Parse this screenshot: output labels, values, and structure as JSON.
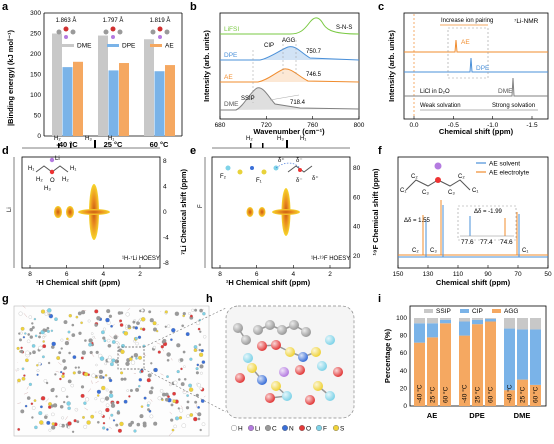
{
  "panels": {
    "a": {
      "letter": "a",
      "ylabel": "|Binding energy| (kJ mol⁻¹)",
      "yticks": [
        "0",
        "50",
        "100",
        "150",
        "200",
        "250",
        "300"
      ],
      "distances": [
        "1.863 Å",
        "1.797 Å",
        "1.819 Å"
      ],
      "legend": [
        "DME",
        "DPE",
        "AE"
      ]
    },
    "b": {
      "letter": "b",
      "xlabel": "Wavenumber (cm⁻¹)",
      "ylabel": "Intensity (arb. units)",
      "xticks": [
        "680",
        "720",
        "760",
        "800"
      ],
      "curves": [
        "LiFSI",
        "DPE",
        "AE",
        "DME"
      ],
      "annotations": [
        "S-N-S",
        "AGG",
        "CIP",
        "750.7",
        "746.5",
        "SSIP",
        "718.4"
      ]
    },
    "c": {
      "letter": "c",
      "title": "⁷Li-NMR",
      "xlabel": "Chemical shift (ppm)",
      "ylabel": "Intensity (arb. units)",
      "xticks": [
        "0.0",
        "-0.5",
        "-1.0",
        "-1.5"
      ],
      "curves": [
        "AE",
        "DPE",
        "DME"
      ],
      "ref": "LiCl in D₂O",
      "note": "Increase ion pairing",
      "solvation": [
        "Weak solvation",
        "Strong solvation"
      ]
    },
    "d": {
      "letter": "d",
      "xlabel": "¹H Chemical shift (ppm)",
      "ylabel": "⁷Li Chemical shift (ppm)",
      "xticks": [
        "8",
        "6",
        "4",
        "2"
      ],
      "yticks": [
        "8",
        "4",
        "0",
        "-4",
        "-8"
      ],
      "method": "¹H-⁷Li HOESY",
      "top_labels": [
        "H₂",
        "H₃",
        "H₁"
      ],
      "side_label": "Li",
      "atoms": [
        "H₁",
        "H₂",
        "H₃",
        "Li",
        "O",
        "H₂",
        "H₁"
      ]
    },
    "e": {
      "letter": "e",
      "xlabel": "¹H Chemical shift (ppm)",
      "ylabel": "¹⁹F Chemical shift (ppm)",
      "xticks": [
        "8",
        "6",
        "4",
        "2"
      ],
      "yticks": [
        "80",
        "60",
        "40",
        "20"
      ],
      "method": "¹H-¹⁹F HOESY",
      "top_labels": [
        "H₂",
        "H₃",
        "H₁"
      ],
      "side_label": "F",
      "atoms": [
        "F₂",
        "F₁",
        "δ⁺",
        "δ⁻",
        "δ⁻",
        "δ⁺"
      ]
    },
    "f": {
      "letter": "f",
      "xlabel": "Chemical shift (ppm)",
      "xticks": [
        "150",
        "130",
        "110",
        "90",
        "70",
        "50"
      ],
      "legend": [
        "AE solvent",
        "AE electrolyte"
      ],
      "deltas": [
        "Δδ = 1.55",
        "Δδ = -1.99"
      ],
      "carbons": [
        "C₂",
        "C₃",
        "C₁"
      ],
      "inset_ticks": [
        "77.6",
        "77.4",
        "74.6"
      ],
      "atoms": [
        "C₁",
        "C₂",
        "C₃",
        "C₁",
        "C₂",
        "C₃"
      ]
    },
    "g": {
      "letter": "g"
    },
    "h": {
      "letter": "h",
      "legend": [
        "H",
        "Li",
        "C",
        "N",
        "O",
        "F",
        "S"
      ]
    },
    "i": {
      "letter": "i",
      "ylabel": "Percentage (%)",
      "yticks": [
        "0",
        "20",
        "40",
        "60",
        "80",
        "100"
      ],
      "legend": [
        "SSIP",
        "CIP",
        "AGG"
      ],
      "groups": [
        "AE",
        "DPE",
        "DME"
      ],
      "temps": [
        "-40 °C",
        "25 °C",
        "60 °C"
      ]
    }
  },
  "colors": {
    "gray": "#c8c8c8",
    "blue": "#7ab3e8",
    "orange": "#f5a861",
    "lifsi": "#7ac943",
    "dpe": "#4a90d9",
    "ae": "#f08c2e",
    "dme": "#808080",
    "contour_yellow": "#f2c618",
    "contour_orange": "#e2761d"
  },
  "chart_data": [
    {
      "panel": "a",
      "type": "bar",
      "categories": [
        "-40 °C",
        "25 °C",
        "60 °C"
      ],
      "series": [
        {
          "name": "DME",
          "values": [
            250,
            245,
            236
          ]
        },
        {
          "name": "DPE",
          "values": [
            168,
            160,
            158
          ]
        },
        {
          "name": "AE",
          "values": [
            181,
            178,
            173
          ]
        }
      ],
      "ylabel": "|Binding energy| (kJ mol⁻¹)",
      "ylim": [
        0,
        300
      ]
    },
    {
      "panel": "i",
      "type": "bar",
      "stacked": true,
      "categories": [
        "AE -40 °C",
        "AE 25 °C",
        "AE 60 °C",
        "DPE -40 °C",
        "DPE 25 °C",
        "DPE 60 °C",
        "DME -40 °C",
        "DME 25 °C",
        "DME 60 °C"
      ],
      "series": [
        {
          "name": "AGG",
          "values": [
            72,
            78,
            94,
            80,
            93,
            96,
            18,
            30,
            24
          ]
        },
        {
          "name": "CIP",
          "values": [
            22,
            16,
            4,
            16,
            5,
            3,
            70,
            57,
            63
          ]
        },
        {
          "name": "SSIP",
          "values": [
            6,
            6,
            2,
            4,
            2,
            1,
            12,
            13,
            13
          ]
        }
      ],
      "ylabel": "Percentage (%)",
      "ylim": [
        0,
        100
      ]
    }
  ]
}
